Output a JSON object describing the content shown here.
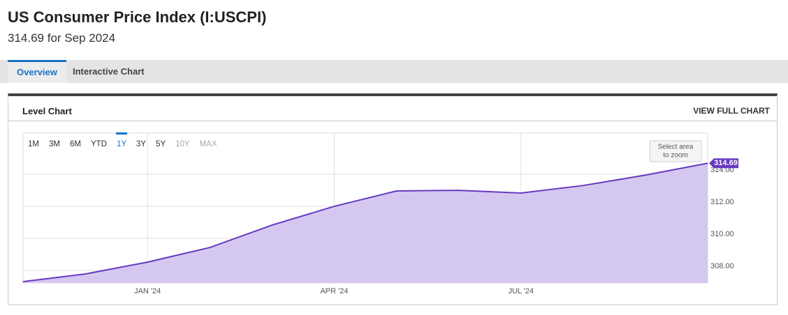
{
  "header": {
    "title": "US Consumer Price Index (I:USCPI)",
    "subtitle": "314.69 for Sep 2024"
  },
  "tabs": [
    {
      "label": "Overview",
      "active": true
    },
    {
      "label": "Interactive Chart",
      "active": false
    }
  ],
  "panel": {
    "title": "Level Chart",
    "link": "VIEW FULL CHART"
  },
  "ranges": [
    {
      "label": "1M",
      "state": "normal"
    },
    {
      "label": "3M",
      "state": "normal"
    },
    {
      "label": "6M",
      "state": "normal"
    },
    {
      "label": "YTD",
      "state": "normal"
    },
    {
      "label": "1Y",
      "state": "active"
    },
    {
      "label": "3Y",
      "state": "normal"
    },
    {
      "label": "5Y",
      "state": "normal"
    },
    {
      "label": "10Y",
      "state": "disabled"
    },
    {
      "label": "MAX",
      "state": "disabled"
    }
  ],
  "zoom_hint": [
    "Select area",
    "to zoom"
  ],
  "chart_data": {
    "type": "area",
    "x": [
      "2023-10",
      "2023-11",
      "2023-12",
      "2024-01",
      "2024-02",
      "2024-03",
      "2024-04",
      "2024-05",
      "2024-06",
      "2024-07",
      "2024-08",
      "2024-09"
    ],
    "values": [
      307.3,
      307.78,
      308.52,
      309.43,
      310.83,
      312.0,
      312.96,
      313.0,
      312.83,
      313.3,
      313.95,
      314.69
    ],
    "color": "#6639c2",
    "fill": "#d5c8f0",
    "xticks": [
      {
        "value": "2024-01",
        "label": "JAN '24"
      },
      {
        "value": "2024-04",
        "label": "APR '24"
      },
      {
        "value": "2024-07",
        "label": "JUL '24"
      }
    ],
    "ylim": [
      307.22,
      316.57
    ],
    "yticks": [
      {
        "value": 308,
        "label": "308.00"
      },
      {
        "value": 310,
        "label": "310.00"
      },
      {
        "value": 312,
        "label": "312.00"
      },
      {
        "value": 314,
        "label": "314.00"
      }
    ],
    "grid": true
  }
}
